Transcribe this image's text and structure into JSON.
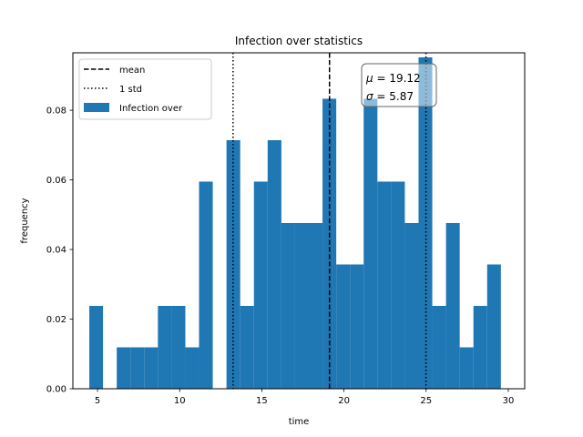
{
  "chart_data": {
    "type": "bar",
    "title": "Infection over statistics",
    "xlabel": "time",
    "ylabel": "frequency",
    "xlim": [
      3.5,
      31
    ],
    "ylim": [
      0,
      0.0965
    ],
    "xticks": [
      5,
      10,
      15,
      20,
      25,
      30
    ],
    "yticks": [
      0.0,
      0.02,
      0.04,
      0.06,
      0.08
    ],
    "ytick_labels": [
      "0.00",
      "0.02",
      "0.04",
      "0.06",
      "0.08"
    ],
    "bin_width": 0.835,
    "bins": [
      {
        "x0": 4.5,
        "value": 0.0238
      },
      {
        "x0": 5.335,
        "value": 0.0
      },
      {
        "x0": 6.17,
        "value": 0.0119
      },
      {
        "x0": 7.005,
        "value": 0.0119
      },
      {
        "x0": 7.84,
        "value": 0.0119
      },
      {
        "x0": 8.675,
        "value": 0.0238
      },
      {
        "x0": 9.51,
        "value": 0.0238
      },
      {
        "x0": 10.345,
        "value": 0.0119
      },
      {
        "x0": 11.18,
        "value": 0.0595
      },
      {
        "x0": 12.015,
        "value": 0.0
      },
      {
        "x0": 12.85,
        "value": 0.0714
      },
      {
        "x0": 13.685,
        "value": 0.0238
      },
      {
        "x0": 14.52,
        "value": 0.0595
      },
      {
        "x0": 15.355,
        "value": 0.0714
      },
      {
        "x0": 16.19,
        "value": 0.0476
      },
      {
        "x0": 17.025,
        "value": 0.0476
      },
      {
        "x0": 17.86,
        "value": 0.0476
      },
      {
        "x0": 18.695,
        "value": 0.0833
      },
      {
        "x0": 19.53,
        "value": 0.0357
      },
      {
        "x0": 20.365,
        "value": 0.0357
      },
      {
        "x0": 21.2,
        "value": 0.0833
      },
      {
        "x0": 22.035,
        "value": 0.0595
      },
      {
        "x0": 22.87,
        "value": 0.0595
      },
      {
        "x0": 23.705,
        "value": 0.0476
      },
      {
        "x0": 24.54,
        "value": 0.0952
      },
      {
        "x0": 25.375,
        "value": 0.0238
      },
      {
        "x0": 26.21,
        "value": 0.0476
      },
      {
        "x0": 27.045,
        "value": 0.0119
      },
      {
        "x0": 27.88,
        "value": 0.0238
      },
      {
        "x0": 28.715,
        "value": 0.0357
      }
    ],
    "bar_color": "#1f77b4",
    "mean": 19.12,
    "std": 5.87,
    "std_lines": [
      13.25,
      24.99
    ],
    "legend": {
      "placement": "upper left",
      "entries": [
        {
          "label": "mean",
          "style": "dashed"
        },
        {
          "label": "1 std",
          "style": "dotted"
        },
        {
          "label": "Infection over",
          "style": "patch"
        }
      ]
    },
    "stats_box": {
      "mu_symbol": "μ",
      "sigma_symbol": "σ",
      "mu_value": "19.12",
      "sigma_value": "5.87"
    }
  }
}
